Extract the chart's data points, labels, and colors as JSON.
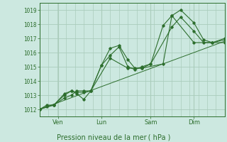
{
  "bg_color": "#cce8e0",
  "grid_color": "#aaccbb",
  "line_color": "#2d6e2d",
  "xlabel": "Pression niveau de la mer ( hPa )",
  "ylim": [
    1011.5,
    1019.5
  ],
  "xlim": [
    0,
    10.5
  ],
  "xtick_labels": [
    "Ven",
    "Lun",
    "Sam",
    "Dim"
  ],
  "xtick_positions": [
    1.05,
    3.5,
    6.3,
    8.75
  ],
  "ytick_values": [
    1012,
    1013,
    1014,
    1015,
    1016,
    1017,
    1018,
    1019
  ],
  "series": [
    {
      "x": [
        0.0,
        0.4,
        0.8,
        1.4,
        1.8,
        2.1,
        2.5,
        2.9,
        3.5,
        4.0,
        4.5,
        5.0,
        5.4,
        5.8,
        6.3,
        7.0,
        7.5,
        8.0,
        8.75,
        9.3,
        9.8,
        10.5
      ],
      "y": [
        1012.0,
        1012.3,
        1012.3,
        1013.1,
        1013.3,
        1013.2,
        1013.2,
        1013.3,
        1015.1,
        1016.3,
        1016.5,
        1015.5,
        1014.9,
        1014.9,
        1015.2,
        1017.9,
        1018.6,
        1019.0,
        1018.1,
        1016.9,
        1016.7,
        1017.0
      ],
      "marker": true
    },
    {
      "x": [
        0.0,
        0.8,
        1.4,
        1.8,
        2.1,
        2.5,
        2.9,
        3.5,
        4.0,
        4.5,
        5.0,
        5.4,
        5.8,
        6.3,
        7.5,
        8.0,
        8.75,
        9.3,
        9.8,
        10.5
      ],
      "y": [
        1012.0,
        1012.3,
        1012.8,
        1013.0,
        1013.3,
        1013.3,
        1013.3,
        1015.1,
        1015.8,
        1016.4,
        1015.0,
        1014.8,
        1015.0,
        1015.2,
        1017.8,
        1018.5,
        1017.5,
        1016.7,
        1016.7,
        1016.9
      ],
      "marker": true
    },
    {
      "x": [
        0.0,
        0.4,
        0.8,
        1.4,
        1.8,
        2.1,
        2.5,
        2.9,
        4.0,
        5.0,
        5.8,
        7.0,
        7.5,
        8.75,
        9.8,
        10.5
      ],
      "y": [
        1012.0,
        1012.2,
        1012.3,
        1013.0,
        1013.3,
        1013.1,
        1012.7,
        1013.3,
        1015.6,
        1014.9,
        1014.9,
        1015.2,
        1018.6,
        1016.7,
        1016.7,
        1016.7
      ],
      "marker": true
    },
    {
      "x": [
        0.0,
        10.5
      ],
      "y": [
        1012.0,
        1016.8
      ],
      "marker": false
    }
  ],
  "vgrid_minor_step": 0.525,
  "hgrid_minor_step": 0.5
}
